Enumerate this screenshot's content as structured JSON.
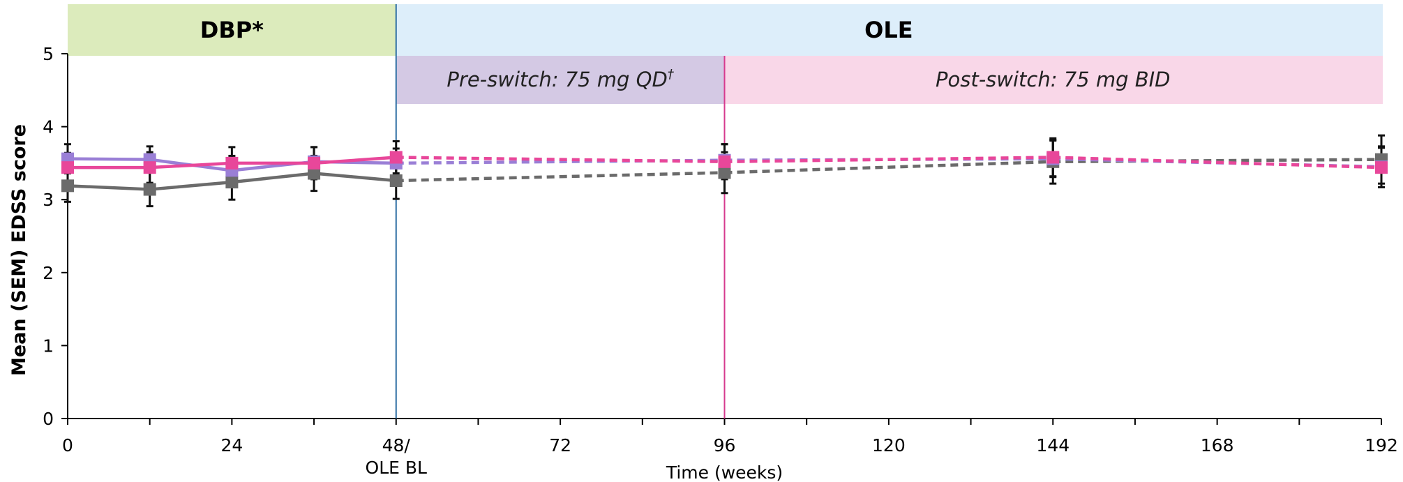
{
  "colors": {
    "dbp_band": "#dcebbc",
    "ole_band": "#ddeefa",
    "preswitch_band": "#d4c9e4",
    "postswitch_band": "#f9d7e8",
    "divider_48": "#2e6fa3",
    "divider_96": "#d63a8e"
  },
  "bands": {
    "dbp_label": "DBP*",
    "ole_label": "OLE",
    "preswitch_label": "Pre-switch: 75 mg QD",
    "preswitch_sup": "†",
    "postswitch_label": "Post-switch: 75 mg BID"
  },
  "chart_data": {
    "type": "line",
    "title": "",
    "xlabel": "Time (weeks)",
    "ylabel": "Mean (SEM) EDSS score",
    "xlim": [
      0,
      192
    ],
    "ylim": [
      0,
      5
    ],
    "x_ticks": [
      0,
      24,
      48,
      72,
      96,
      120,
      144,
      168,
      192
    ],
    "x_tick_labels": [
      "0",
      "24",
      "48/",
      "72",
      "96",
      "120",
      "144",
      "168",
      "192"
    ],
    "x_tick_sublabels": {
      "48": "OLE BL"
    },
    "x_minor_ticks": [
      12,
      36,
      60,
      84,
      108,
      132,
      156,
      180
    ],
    "y_ticks": [
      0,
      1,
      2,
      3,
      4,
      5
    ],
    "grid": false,
    "legend": "none",
    "series": [
      {
        "color": "#6b6b6b",
        "points": [
          {
            "x": 0,
            "y": 3.19,
            "err": 0.22
          },
          {
            "x": 12,
            "y": 3.14,
            "err": 0.23
          },
          {
            "x": 24,
            "y": 3.24,
            "err": 0.24
          },
          {
            "x": 36,
            "y": 3.36,
            "err": 0.24
          },
          {
            "x": 48,
            "y": 3.26,
            "err": 0.25
          },
          {
            "x": 96,
            "y": 3.37,
            "err": 0.28
          },
          {
            "x": 144,
            "y": 3.52,
            "err": 0.3
          },
          {
            "x": 192,
            "y": 3.55,
            "err": 0.33
          }
        ],
        "dashed_from_x": 48
      },
      {
        "color": "#9a7fd6",
        "points": [
          {
            "x": 0,
            "y": 3.56,
            "err": 0.2
          },
          {
            "x": 12,
            "y": 3.55,
            "err": 0.18
          },
          {
            "x": 24,
            "y": 3.4,
            "err": 0.2
          },
          {
            "x": 36,
            "y": 3.52,
            "err": 0.2
          },
          {
            "x": 48,
            "y": 3.5,
            "err": 0.2
          },
          {
            "x": 96,
            "y": 3.54,
            "err": 0.22
          },
          {
            "x": 144,
            "y": 3.56,
            "err": 0.25
          },
          {
            "x": 192,
            "y": 3.45,
            "err": 0.28
          }
        ],
        "dashed_from_x": 48
      },
      {
        "color": "#e8479a",
        "points": [
          {
            "x": 0,
            "y": 3.44,
            "err": 0.2
          },
          {
            "x": 12,
            "y": 3.44,
            "err": 0.21
          },
          {
            "x": 24,
            "y": 3.5,
            "err": 0.22
          },
          {
            "x": 36,
            "y": 3.5,
            "err": 0.22
          },
          {
            "x": 48,
            "y": 3.58,
            "err": 0.22
          },
          {
            "x": 96,
            "y": 3.52,
            "err": 0.24
          },
          {
            "x": 144,
            "y": 3.58,
            "err": 0.26
          },
          {
            "x": 192,
            "y": 3.44,
            "err": 0.27
          }
        ],
        "dashed_from_x": 48
      }
    ]
  }
}
